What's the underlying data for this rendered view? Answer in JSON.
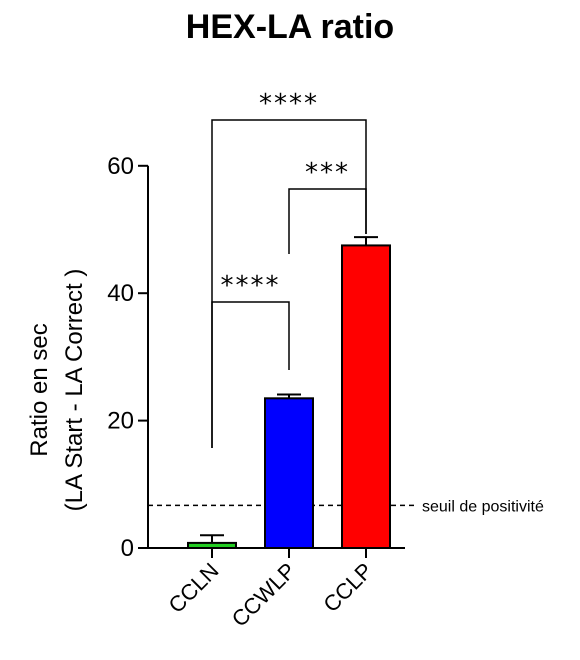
{
  "chart_data": {
    "type": "bar",
    "title": "HEX-LA ratio",
    "ylabel_line1": "Ratio en sec",
    "ylabel_line2": "(LA Start - LA Correct )",
    "xlabel": "",
    "ylim": [
      0,
      60
    ],
    "yticks": [
      0,
      20,
      40,
      60
    ],
    "ytick_labels": [
      "0",
      "20",
      "40",
      "60"
    ],
    "categories": [
      "CCLN",
      "CCWLP",
      "CCLP"
    ],
    "values": [
      0.8,
      23.5,
      47.5
    ],
    "errors": [
      1.2,
      0.6,
      1.3
    ],
    "colors": [
      "#22cc22",
      "#0000ff",
      "#ff0000"
    ],
    "threshold": {
      "value": 6.7,
      "label": "seuil de positivité"
    },
    "significance": [
      {
        "from": 0,
        "to": 1,
        "label": "****"
      },
      {
        "from": 1,
        "to": 2,
        "label": "***"
      },
      {
        "from": 0,
        "to": 2,
        "label": "****"
      }
    ]
  }
}
